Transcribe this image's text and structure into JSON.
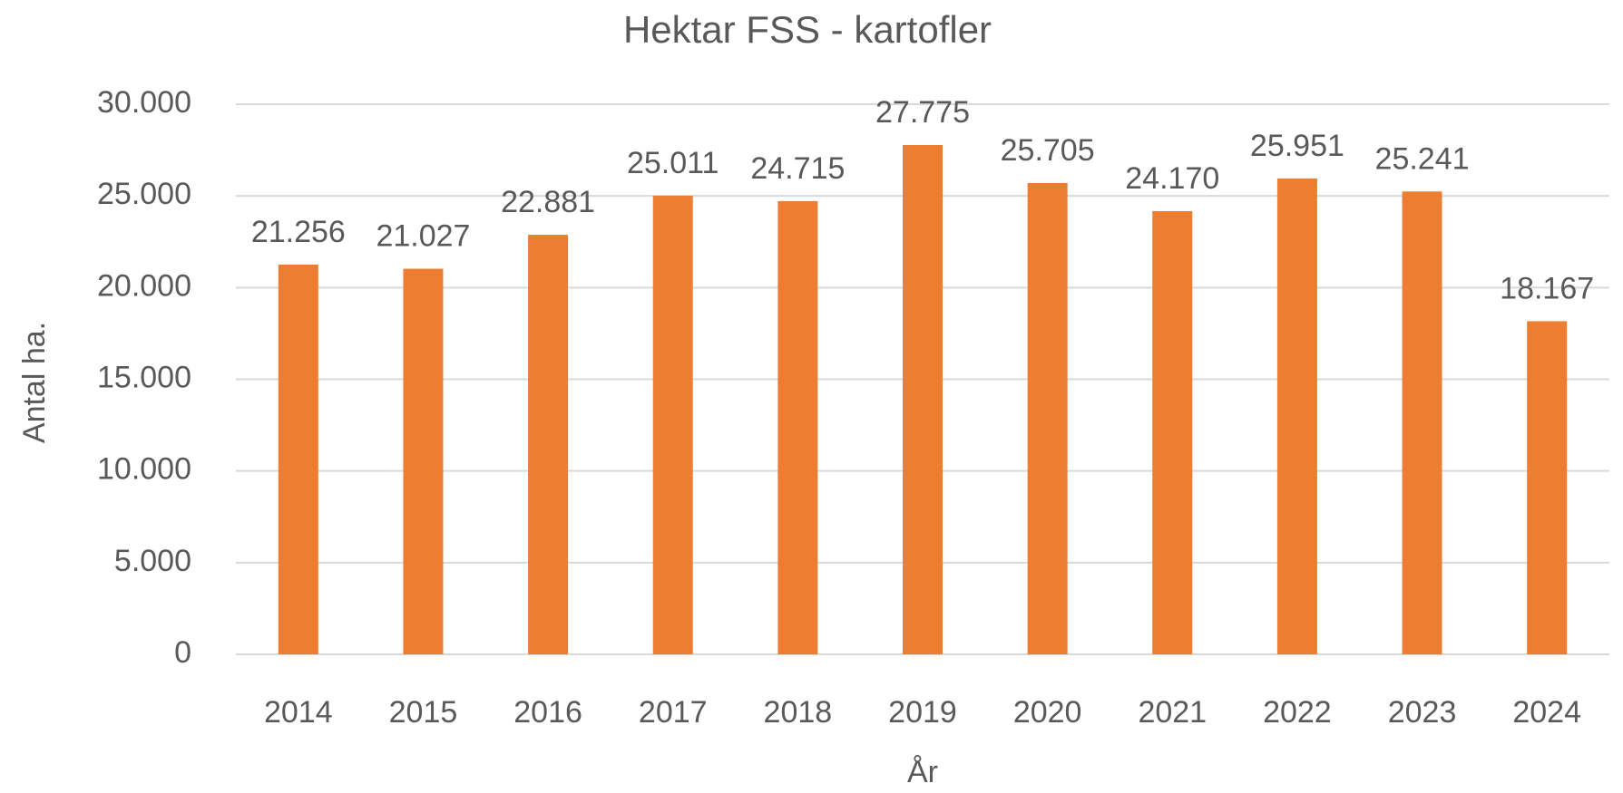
{
  "chart_data": {
    "type": "bar",
    "title": "Hektar FSS - kartofler",
    "x_label": "År",
    "y_label": "Antal ha.",
    "categories": [
      "2014",
      "2015",
      "2016",
      "2017",
      "2018",
      "2019",
      "2020",
      "2021",
      "2022",
      "2023",
      "2024"
    ],
    "values": [
      21256,
      21027,
      22881,
      25011,
      24715,
      27775,
      25705,
      24170,
      25951,
      25241,
      18167
    ],
    "value_labels": [
      "21.256",
      "21.027",
      "22.881",
      "25.011",
      "24.715",
      "27.775",
      "25.705",
      "24.170",
      "25.951",
      "25.241",
      "18.167"
    ],
    "color": "#ED7D31",
    "ylim": [
      0,
      30000
    ],
    "yticks": [
      0,
      {
        "value": 5000,
        "label": "5.000"
      },
      {
        "value": 10000,
        "label": "10.000"
      },
      {
        "value": 15000,
        "label": "15.000"
      },
      {
        "value": 20000,
        "label": "20.000"
      },
      {
        "value": 25000,
        "label": "25.000"
      },
      {
        "value": 30000,
        "label": "30.000"
      }
    ],
    "grid": true
  }
}
